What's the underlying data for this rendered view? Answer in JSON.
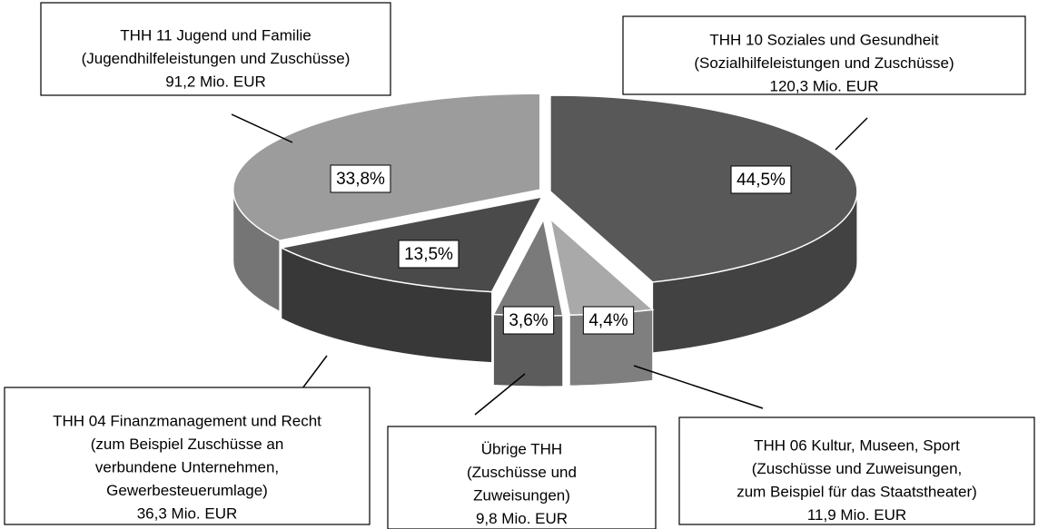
{
  "chart_data": {
    "type": "pie3d",
    "categories": [
      "THH 10 Soziales und Gesundheit",
      "THH 06 Kultur, Museen, Sport",
      "Übrige THH",
      "THH 04 Finanzmanagement und Recht",
      "THH 11 Jugend und Familie"
    ],
    "details": [
      [
        "(Sozialhilfeleistungen und Zuschüsse)"
      ],
      [
        "(Zuschüsse und Zuweisungen,",
        "zum Beispiel für das Staatstheater)"
      ],
      [
        "(Zuschüsse und",
        "Zuweisungen)"
      ],
      [
        "(zum Beispiel Zuschüsse  an",
        "verbundene Unternehmen,",
        "Gewerbesteuerumlage)"
      ],
      [
        "(Jugendhilfeleistungen und Zuschüsse)"
      ]
    ],
    "amounts": [
      120.3,
      11.9,
      9.8,
      36.3,
      91.2
    ],
    "amount_labels": [
      "120,3 Mio. EUR",
      "11,9 Mio. EUR",
      "9,8 Mio. EUR",
      "36,3 Mio. EUR",
      "91,2 Mio. EUR"
    ],
    "values": [
      44.5,
      4.4,
      3.6,
      13.5,
      33.8
    ],
    "value_labels": [
      "44,5%",
      "4,4%",
      "3,6%",
      "13,5%",
      "33,8%"
    ],
    "colors": [
      "#585858",
      "#a9a9a9",
      "#7a7a7a",
      "#4a4a4a",
      "#9c9c9c"
    ]
  }
}
